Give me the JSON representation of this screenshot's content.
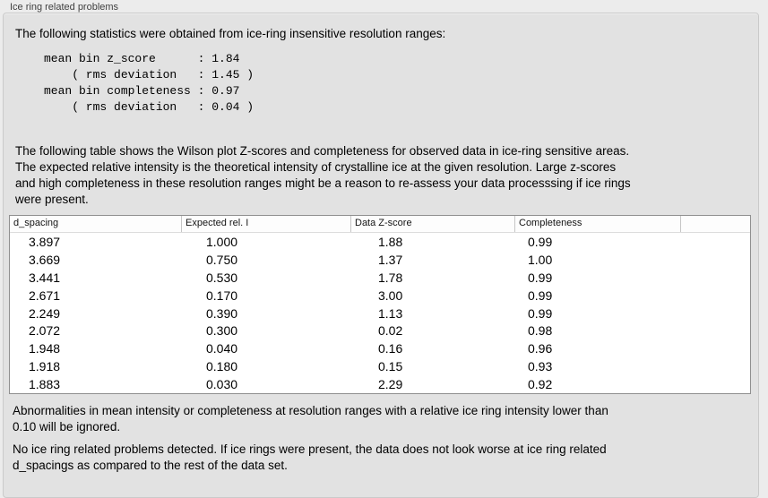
{
  "panel": {
    "title": "Ice ring related problems"
  },
  "intro": "The following statistics were obtained from ice-ring insensitive resolution ranges:",
  "stats_block": "mean bin z_score      : 1.84\n    ( rms deviation   : 1.45 )\nmean bin completeness : 0.97\n    ( rms deviation   : 0.04 )",
  "stats": {
    "mean_bin_z_score": "1.84",
    "z_score_rms_deviation": "1.45",
    "mean_bin_completeness": "0.97",
    "completeness_rms_deviation": "0.04"
  },
  "table_description": "The following table shows the Wilson plot Z-scores and completeness for observed data in ice-ring sensitive areas.\nThe expected relative intensity is the theoretical intensity of crystalline ice at the given resolution. Large z-scores\nand high completeness in these resolution ranges might be a reason to re-assess your data processsing if ice rings\nwere present.",
  "table": {
    "columns": [
      "d_spacing",
      "Expected rel. I",
      "Data Z-score",
      "Completeness",
      ""
    ],
    "rows": [
      [
        "3.897",
        "1.000",
        "1.88",
        "0.99"
      ],
      [
        "3.669",
        "0.750",
        "1.37",
        "1.00"
      ],
      [
        "3.441",
        "0.530",
        "1.78",
        "0.99"
      ],
      [
        "2.671",
        "0.170",
        "3.00",
        "0.99"
      ],
      [
        "2.249",
        "0.390",
        "1.13",
        "0.99"
      ],
      [
        "2.072",
        "0.300",
        "0.02",
        "0.98"
      ],
      [
        "1.948",
        "0.040",
        "0.16",
        "0.96"
      ],
      [
        "1.918",
        "0.180",
        "0.15",
        "0.93"
      ],
      [
        "1.883",
        "0.030",
        "2.29",
        "0.92"
      ]
    ]
  },
  "notes": {
    "ignore_note": "Abnormalities in mean intensity or completeness at resolution ranges with a relative ice ring intensity lower than\n0.10 will be ignored.",
    "conclusion": "No ice ring related problems detected. If ice rings were present, the data does not look worse at ice ring related\nd_spacings as compared to the rest of the data set."
  },
  "colors": {
    "page_bg": "#ececec",
    "panel_bg": "#e2e2e2",
    "panel_border": "#cacaca",
    "table_bg": "#ffffff",
    "table_border": "#8f8f8f"
  }
}
